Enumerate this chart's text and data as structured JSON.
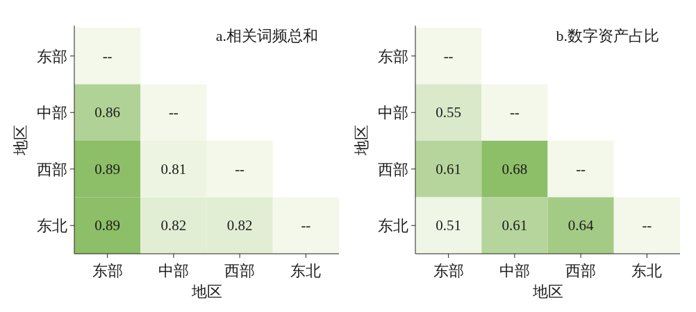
{
  "chart_data": [
    {
      "type": "heatmap",
      "title": "a.相关词频总和",
      "xlabel": "地区",
      "ylabel": "地区",
      "categories": [
        "东部",
        "中部",
        "西部",
        "东北"
      ],
      "y_categories": [
        "东部",
        "中部",
        "西部",
        "东北"
      ],
      "cells": [
        [
          null,
          null,
          null,
          null
        ],
        [
          0.86,
          null,
          null,
          null
        ],
        [
          0.89,
          0.81,
          null,
          null
        ],
        [
          0.89,
          0.82,
          0.82,
          null
        ]
      ],
      "cell_labels": [
        [
          "--",
          null,
          null,
          null
        ],
        [
          "0.86",
          "--",
          null,
          null
        ],
        [
          "0.89",
          "0.81",
          "--",
          null
        ],
        [
          "0.89",
          "0.82",
          "0.82",
          "--"
        ]
      ]
    },
    {
      "type": "heatmap",
      "title": "b.数字资产占比",
      "xlabel": "地区",
      "ylabel": "地区",
      "categories": [
        "东部",
        "中部",
        "西部",
        "东北"
      ],
      "y_categories": [
        "东部",
        "中部",
        "西部",
        "东北"
      ],
      "cells": [
        [
          null,
          null,
          null,
          null
        ],
        [
          0.55,
          null,
          null,
          null
        ],
        [
          0.61,
          0.68,
          null,
          null
        ],
        [
          0.51,
          0.61,
          0.64,
          null
        ]
      ],
      "cell_labels": [
        [
          "--",
          null,
          null,
          null
        ],
        [
          "0.55",
          "--",
          null,
          null
        ],
        [
          "0.61",
          "0.68",
          "--",
          null
        ],
        [
          "0.51",
          "0.61",
          "0.64",
          "--"
        ]
      ]
    }
  ]
}
